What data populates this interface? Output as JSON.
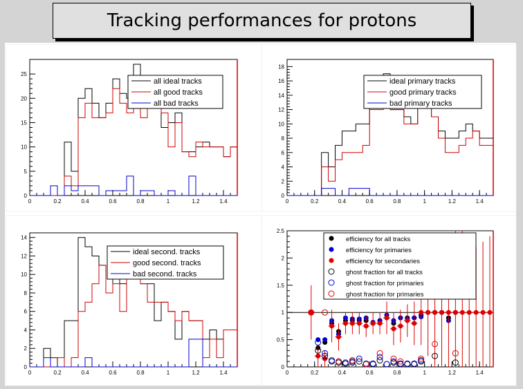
{
  "title": "Tracking performances for protons",
  "chart_data": [
    {
      "type": "line",
      "style": "histogram",
      "x_edges": [
        0.0,
        0.05,
        0.1,
        0.15,
        0.2,
        0.25,
        0.3,
        0.35,
        0.4,
        0.45,
        0.5,
        0.55,
        0.6,
        0.65,
        0.7,
        0.75,
        0.8,
        0.85,
        0.9,
        0.95,
        1.0,
        1.05,
        1.1,
        1.15,
        1.2,
        1.25,
        1.3,
        1.35,
        1.4,
        1.45,
        1.5
      ],
      "xlim": [
        0,
        1.5
      ],
      "ylim": [
        0,
        28
      ],
      "xticks": [
        "0",
        "0.2",
        "0.4",
        "0.6",
        "0.8",
        "1",
        "1.2",
        "1.4"
      ],
      "yticks": [
        "0",
        "5",
        "10",
        "15",
        "20",
        "25"
      ],
      "ytick_values": [
        0,
        5,
        10,
        15,
        20,
        25
      ],
      "series": [
        {
          "name": "all ideal tracks",
          "color": "#000000",
          "values": [
            0,
            0,
            0,
            0,
            0,
            11,
            5,
            20,
            22,
            19,
            16,
            19,
            24,
            21,
            20,
            27,
            23,
            22,
            20,
            14,
            15,
            17,
            9,
            9,
            10,
            11,
            10,
            10,
            8,
            10
          ]
        },
        {
          "name": "all good tracks",
          "color": "#cc0000",
          "values": [
            0,
            0,
            0,
            0,
            0,
            4,
            2,
            16,
            19,
            16,
            16,
            17,
            22,
            19,
            17,
            18,
            16,
            18,
            18,
            17,
            10,
            15,
            9,
            8,
            11,
            10,
            10,
            10,
            8,
            10
          ]
        },
        {
          "name": "all bad tracks",
          "color": "#0000cc",
          "values": [
            0,
            0,
            0,
            2,
            0,
            2,
            1,
            2,
            2,
            2,
            0,
            1,
            1,
            1,
            4,
            0,
            1,
            1,
            0,
            0,
            1,
            0,
            0,
            4,
            0,
            0,
            0,
            0,
            0,
            0
          ]
        }
      ],
      "legend": "top-right"
    },
    {
      "type": "line",
      "style": "histogram",
      "x_edges": [
        0.0,
        0.05,
        0.1,
        0.15,
        0.2,
        0.25,
        0.3,
        0.35,
        0.4,
        0.45,
        0.5,
        0.55,
        0.6,
        0.65,
        0.7,
        0.75,
        0.8,
        0.85,
        0.9,
        0.95,
        1.0,
        1.05,
        1.1,
        1.15,
        1.2,
        1.25,
        1.3,
        1.35,
        1.4,
        1.45,
        1.5
      ],
      "xlim": [
        0,
        1.5
      ],
      "ylim": [
        0,
        19
      ],
      "xticks": [
        "0",
        "0.2",
        "0.4",
        "0.6",
        "0.8",
        "1",
        "1.2",
        "1.4"
      ],
      "yticks": [
        "0",
        "2",
        "4",
        "6",
        "8",
        "10",
        "12",
        "14",
        "16",
        "18"
      ],
      "ytick_values": [
        0,
        2,
        4,
        6,
        8,
        10,
        12,
        14,
        16,
        18
      ],
      "series": [
        {
          "name": "ideal primary tracks",
          "color": "#000000",
          "values": [
            0,
            0,
            0,
            0,
            0,
            6,
            4,
            7,
            9,
            9,
            10,
            10,
            16,
            14,
            17,
            12,
            12,
            11,
            10,
            14,
            13,
            11,
            9,
            8,
            8,
            9,
            10,
            9,
            8,
            8
          ]
        },
        {
          "name": "good primary tracks",
          "color": "#cc0000",
          "values": [
            0,
            0,
            0,
            0,
            0,
            4,
            2,
            5,
            6,
            6,
            6,
            7,
            12,
            12,
            14,
            12,
            12,
            10,
            10,
            13,
            13,
            11,
            8,
            6,
            6,
            7,
            8,
            9,
            7,
            7
          ]
        },
        {
          "name": "bad primary tracks",
          "color": "#0000cc",
          "values": [
            0,
            0,
            0,
            0,
            0,
            1,
            1,
            0,
            0,
            1,
            1,
            1,
            0,
            0,
            0,
            0,
            0,
            0,
            0,
            0,
            0,
            0,
            0,
            0,
            0,
            0,
            0,
            0,
            0,
            0
          ]
        }
      ],
      "legend": "top-right"
    },
    {
      "type": "line",
      "style": "histogram",
      "x_edges": [
        0.0,
        0.05,
        0.1,
        0.15,
        0.2,
        0.25,
        0.3,
        0.35,
        0.4,
        0.45,
        0.5,
        0.55,
        0.6,
        0.65,
        0.7,
        0.75,
        0.8,
        0.85,
        0.9,
        0.95,
        1.0,
        1.05,
        1.1,
        1.15,
        1.2,
        1.25,
        1.3,
        1.35,
        1.4,
        1.45,
        1.5
      ],
      "xlim": [
        0,
        1.5
      ],
      "ylim": [
        0,
        14.5
      ],
      "xticks": [
        "0",
        "0.2",
        "0.4",
        "0.6",
        "0.8",
        "1",
        "1.2",
        "1.4"
      ],
      "yticks": [
        "0",
        "2",
        "4",
        "6",
        "8",
        "10",
        "12",
        "14"
      ],
      "ytick_values": [
        0,
        2,
        4,
        6,
        8,
        10,
        12,
        14
      ],
      "series": [
        {
          "name": "ideal second. tracks",
          "color": "#000000",
          "values": [
            0,
            0,
            2,
            1,
            0,
            5,
            5,
            14,
            13,
            12,
            11,
            8,
            11,
            9,
            12,
            11,
            9,
            9,
            5,
            7,
            6,
            3,
            6,
            5,
            5,
            3,
            4,
            3,
            4,
            4
          ]
        },
        {
          "name": "good second. tracks",
          "color": "#cc0000",
          "values": [
            0,
            0,
            0,
            1,
            1,
            0,
            1,
            6,
            7,
            9,
            11,
            8,
            9,
            6,
            10,
            10,
            9,
            7,
            7,
            7,
            6,
            5,
            6,
            5,
            5,
            1,
            3,
            1,
            4,
            4
          ]
        },
        {
          "name": "bad second. tracks",
          "color": "#0000cc",
          "values": [
            0,
            0,
            1,
            0,
            0,
            0,
            0,
            0,
            1,
            0,
            0,
            0,
            0,
            0,
            0,
            0,
            0,
            0,
            0,
            0,
            0,
            0,
            0,
            3,
            3,
            0,
            0,
            0,
            0,
            0
          ]
        }
      ],
      "legend": "top-right"
    },
    {
      "type": "scatter",
      "xlim": [
        0,
        1.5
      ],
      "ylim": [
        0,
        2.5
      ],
      "xticks": [
        "0",
        "0.2",
        "0.4",
        "0.6",
        "0.8",
        "1",
        "1.2",
        "1.4"
      ],
      "yticks": [
        "0",
        "0.5",
        "1",
        "1.5",
        "2",
        "2.5"
      ],
      "ytick_values": [
        0,
        0.5,
        1,
        1.5,
        2,
        2.5
      ],
      "reference_line": 1,
      "series": [
        {
          "name": "efficiency for all tracks",
          "color": "#000000",
          "marker": "filled",
          "x": [
            0.225,
            0.275,
            0.325,
            0.375,
            0.425,
            0.475,
            0.525,
            0.575,
            0.625,
            0.675,
            0.725,
            0.775,
            0.825,
            0.875,
            0.925,
            0.975,
            1.025,
            1.075,
            1.125,
            1.175,
            1.225
          ],
          "y": [
            0.35,
            0.45,
            0.8,
            0.65,
            0.85,
            0.85,
            0.85,
            0.85,
            0.8,
            0.85,
            0.9,
            0.8,
            0.9,
            0.9,
            0.9,
            0.95,
            1.0,
            1.0,
            1.0,
            0.9,
            1.0
          ]
        },
        {
          "name": "efficiency for primaries",
          "color": "#0000cc",
          "marker": "filled",
          "x": [
            0.225,
            0.275,
            0.325,
            0.375,
            0.425,
            0.475,
            0.525,
            0.575,
            0.625,
            0.675,
            0.725,
            0.775,
            0.825,
            0.875,
            0.925,
            0.975,
            1.025,
            1.075,
            1.125,
            1.175,
            1.225
          ],
          "y": [
            0.5,
            0.5,
            0.85,
            0.6,
            0.9,
            0.88,
            0.88,
            0.9,
            0.82,
            0.85,
            0.95,
            0.85,
            0.9,
            0.88,
            0.9,
            0.92,
            1.0,
            1.0,
            1.0,
            0.85,
            1.0
          ]
        },
        {
          "name": "efficiency for secondaries",
          "color": "#dd0000",
          "marker": "filled",
          "x": [
            0.175,
            0.225,
            0.275,
            0.325,
            0.375,
            0.425,
            0.475,
            0.525,
            0.575,
            0.625,
            0.675,
            0.725,
            0.775,
            0.825,
            0.875,
            0.925,
            0.975,
            1.025,
            1.075,
            1.125,
            1.175,
            1.225,
            1.275,
            1.325,
            1.375,
            1.425,
            1.475
          ],
          "y": [
            1.0,
            0.2,
            0.15,
            0.75,
            0.55,
            0.8,
            0.8,
            0.8,
            0.75,
            0.8,
            0.8,
            0.9,
            0.7,
            0.75,
            0.85,
            0.8,
            1.0,
            1.0,
            1.0,
            1.0,
            1.0,
            1.0,
            1.0,
            1.0,
            1.0,
            1.0,
            1.0
          ],
          "yerr": [
            0.5,
            0.2,
            0.15,
            0.3,
            0.25,
            0.2,
            0.2,
            0.2,
            0.2,
            0.2,
            0.2,
            0.3,
            0.3,
            0.3,
            0.3,
            0.4,
            0.6,
            0.8,
            1.0,
            1.2,
            1.4,
            1.6,
            1.5,
            1.3,
            1.2,
            1.3,
            1.4
          ]
        },
        {
          "name": "ghost fraction for all tracks",
          "color": "#000000",
          "marker": "open",
          "x": [
            0.225,
            0.275,
            0.325,
            0.375,
            0.425,
            0.475,
            0.525,
            0.575,
            0.625,
            0.675,
            0.725,
            0.775,
            0.825,
            0.875,
            0.925,
            0.975,
            1.075,
            1.225
          ],
          "y": [
            0.3,
            0.2,
            0.1,
            0.08,
            0.06,
            0.08,
            0.1,
            0.05,
            0.05,
            0.12,
            0.05,
            0.08,
            0.05,
            0.05,
            0.05,
            0.1,
            0.2,
            0.08
          ]
        },
        {
          "name": "ghost fraction for primaries",
          "color": "#0000cc",
          "marker": "open",
          "x": [
            0.225,
            0.275,
            0.325,
            0.375,
            0.425,
            0.475,
            0.525,
            0.575,
            0.625,
            0.675,
            0.725,
            0.775,
            0.825,
            0.875,
            0.925,
            0.975
          ],
          "y": [
            0.45,
            0.25,
            0.12,
            0.1,
            0.08,
            0.1,
            0.15,
            0.06,
            0.06,
            0.18,
            0.05,
            0.1,
            0.06,
            0.06,
            0.06,
            0.12
          ]
        },
        {
          "name": "ghost fraction for primaries",
          "color": "#dd0000",
          "marker": "open",
          "x": [
            0.175,
            0.275,
            0.375,
            0.475,
            0.575,
            0.675,
            0.775,
            0.825,
            0.975,
            1.075,
            1.225
          ],
          "y": [
            1.0,
            1.0,
            0.1,
            0.12,
            0.05,
            0.25,
            0.15,
            0.1,
            0.15,
            0.42,
            0.25
          ]
        }
      ],
      "legend": "top-right"
    }
  ]
}
